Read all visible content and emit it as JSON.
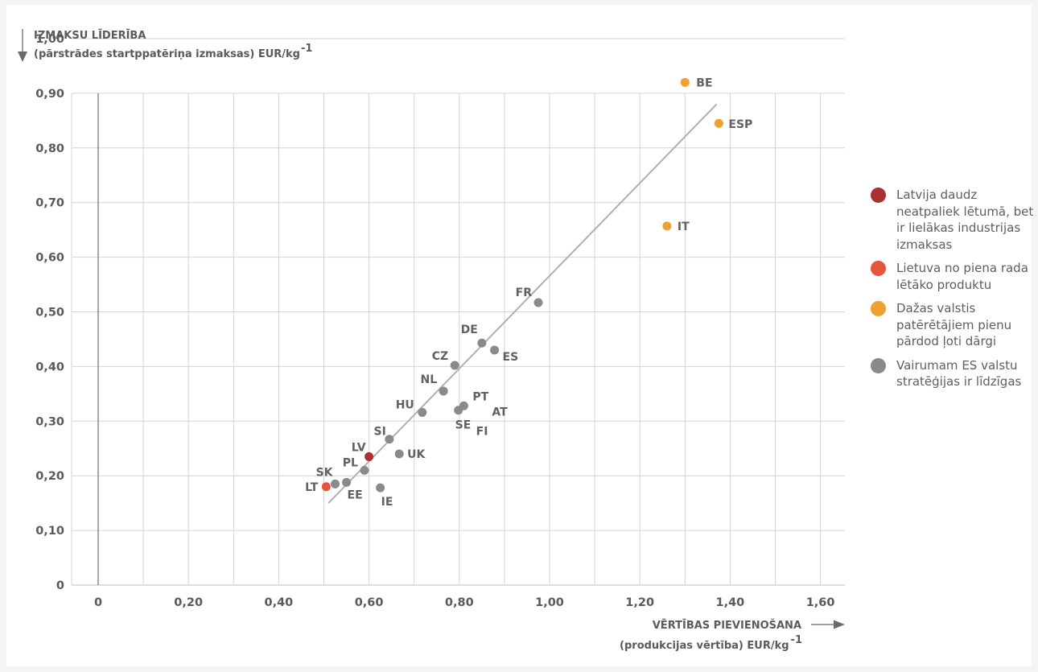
{
  "chart_data": {
    "type": "scatter",
    "title": "",
    "ylabel": [
      "IZMAKSU LĪDERĪBA",
      "(pārstrādes startppatēriņa izmaksas) EUR/kg",
      "-1"
    ],
    "xlabel": [
      "VĒRTĪBAS PIEVIENOŠANA",
      "(produkcijas vērtība) EUR/kg",
      "-1"
    ],
    "xlim": [
      -0.1,
      1.65
    ],
    "ylim": [
      0,
      1.0
    ],
    "x_ticks": [
      0,
      0.2,
      0.4,
      0.6,
      0.8,
      1.0,
      1.2,
      1.4,
      1.6
    ],
    "x_tick_labels": [
      "0",
      "0,20",
      "0,40",
      "0,60",
      "0,80",
      "1,00",
      "1,20",
      "1,40",
      "1,60"
    ],
    "y_ticks": [
      0,
      0.1,
      0.2,
      0.3,
      0.4,
      0.5,
      0.6,
      0.7,
      0.8,
      0.9,
      1.0
    ],
    "y_tick_labels": [
      "0",
      "0,10",
      "0,20",
      "0,30",
      "0,40",
      "0,50",
      "0,60",
      "0,70",
      "0,80",
      "0,90",
      "1,00"
    ],
    "grid": true,
    "legend_position": "right",
    "colors": {
      "lv": "#a83232",
      "lt": "#e5553a",
      "expensive": "#f0a030",
      "other": "#8a8a8a",
      "trend": "#b0b0b0",
      "grid": "#d4d4d4"
    },
    "trendline": {
      "x": [
        0.51,
        1.37
      ],
      "y": [
        0.15,
        0.88
      ]
    },
    "series": [
      {
        "group": "lv",
        "points": [
          {
            "label": "LV",
            "x": 0.6,
            "y": 0.235
          }
        ]
      },
      {
        "group": "lt",
        "points": [
          {
            "label": "LT",
            "x": 0.505,
            "y": 0.18
          }
        ]
      },
      {
        "group": "expensive",
        "points": [
          {
            "label": "BE",
            "x": 1.3,
            "y": 0.92
          },
          {
            "label": "ESP",
            "x": 1.375,
            "y": 0.845
          },
          {
            "label": "IT",
            "x": 1.26,
            "y": 0.657
          }
        ]
      },
      {
        "group": "other",
        "points": [
          {
            "label": "FR",
            "x": 0.975,
            "y": 0.517
          },
          {
            "label": "DE",
            "x": 0.85,
            "y": 0.443
          },
          {
            "label": "ES",
            "x": 0.878,
            "y": 0.43
          },
          {
            "label": "CZ",
            "x": 0.79,
            "y": 0.402
          },
          {
            "label": "NL",
            "x": 0.765,
            "y": 0.355
          },
          {
            "label": "HU",
            "x": 0.718,
            "y": 0.316
          },
          {
            "label": "PT",
            "x": 0.81,
            "y": 0.328
          },
          {
            "label": "AT",
            "x": 0.81,
            "y": 0.328
          },
          {
            "label": "SE",
            "x": 0.798,
            "y": 0.32
          },
          {
            "label": "FI",
            "x": 0.798,
            "y": 0.32
          },
          {
            "label": "SI",
            "x": 0.645,
            "y": 0.267
          },
          {
            "label": "UK",
            "x": 0.667,
            "y": 0.24
          },
          {
            "label": "PL",
            "x": 0.59,
            "y": 0.21
          },
          {
            "label": "SK",
            "x": 0.525,
            "y": 0.185
          },
          {
            "label": "EE",
            "x": 0.55,
            "y": 0.188
          },
          {
            "label": "IE",
            "x": 0.625,
            "y": 0.178
          }
        ]
      }
    ]
  },
  "legend": {
    "items": [
      {
        "color": "#a83232",
        "text": "Latvija daudz neatpaliek lētumā, bet ir lielākas industrijas izmaksas"
      },
      {
        "color": "#e5553a",
        "text": "Lietuva no piena rada lētāko produktu"
      },
      {
        "color": "#f0a030",
        "text": "Dažas valstis patērētājiem pienu pārdod ļoti dārgi"
      },
      {
        "color": "#8a8a8a",
        "text": "Vairumam ES valstu stratēģijas ir līdzīgas"
      }
    ]
  }
}
